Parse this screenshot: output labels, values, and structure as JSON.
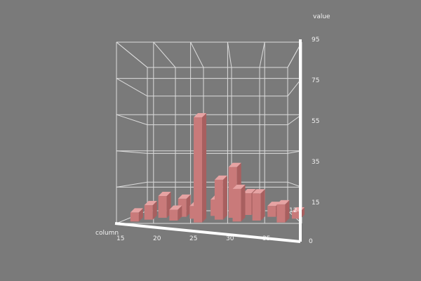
{
  "chart_data": {
    "type": "bar3d",
    "zlabel": "value",
    "xlabel": "column",
    "z_ticks": [
      "95",
      "75",
      "55",
      "35",
      "15"
    ],
    "x_ticks": [
      "15",
      "20",
      "25",
      "30",
      "35"
    ],
    "y_ticks": [
      "12",
      "0"
    ],
    "zlim": [
      -5,
      95
    ],
    "colors": {
      "bar_front": "#c97a7a",
      "bar_side": "#a85f5f",
      "bar_top": "#e6a3a3"
    },
    "bars": [
      {
        "x": 15,
        "y": 2,
        "value": 5
      },
      {
        "x": 17,
        "y": 4,
        "value": 8
      },
      {
        "x": 19,
        "y": 6,
        "value": 12
      },
      {
        "x": 21,
        "y": 3,
        "value": 6
      },
      {
        "x": 22,
        "y": 7,
        "value": 10
      },
      {
        "x": 24,
        "y": 5,
        "value": 7
      },
      {
        "x": 25,
        "y": 1,
        "value": 58
      },
      {
        "x": 27,
        "y": 8,
        "value": 9
      },
      {
        "x": 28,
        "y": 4,
        "value": 22
      },
      {
        "x": 30,
        "y": 6,
        "value": 28
      },
      {
        "x": 31,
        "y": 2,
        "value": 18
      },
      {
        "x": 32,
        "y": 9,
        "value": 12
      },
      {
        "x": 34,
        "y": 3,
        "value": 15
      },
      {
        "x": 36,
        "y": 7,
        "value": 6
      },
      {
        "x": 38,
        "y": 1,
        "value": 10
      },
      {
        "x": 40,
        "y": 5,
        "value": 4
      }
    ]
  }
}
